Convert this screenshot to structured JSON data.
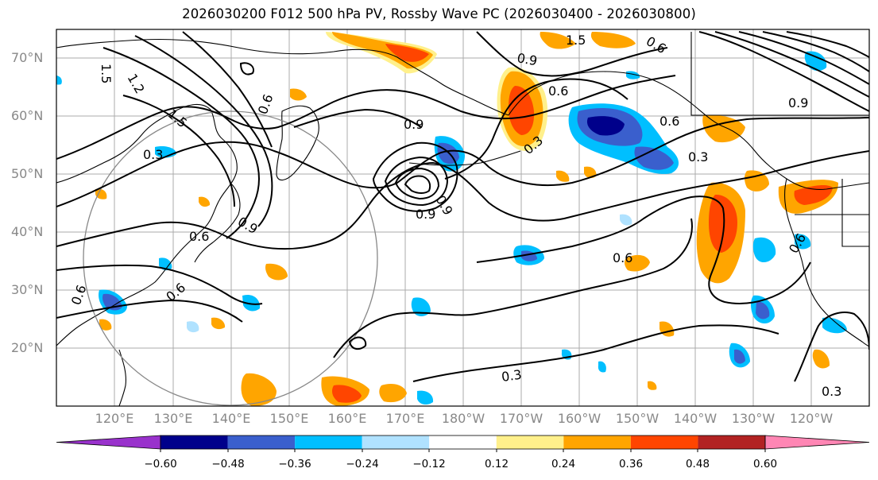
{
  "title": "2026030200 F012 500 hPa PV, Rossby Wave PC (2026030400 - 2026030800)",
  "map": {
    "lat_labels": [
      "70°N",
      "60°N",
      "50°N",
      "40°N",
      "30°N",
      "20°N"
    ],
    "lon_labels": [
      "120°E",
      "130°E",
      "140°E",
      "150°E",
      "160°E",
      "170°E",
      "180°W",
      "170°W",
      "160°W",
      "150°W",
      "140°W",
      "130°W",
      "120°W"
    ],
    "contour_labels": [
      "1.5",
      "1.5",
      "1.2",
      "1.5",
      "0.9",
      "0.9",
      "0.6",
      "0.6",
      "0.3",
      "0.9",
      "0.6",
      "0.3",
      "0.9",
      "0.9",
      "0.3",
      "0.9",
      "0.6",
      "0.6",
      "0.6",
      "0.3",
      "0.3",
      "0.6",
      "0.6",
      "0.6"
    ],
    "colors": {
      "contour": "#000000",
      "grid": "#888888",
      "coast": "#000000"
    }
  },
  "colorbar": {
    "tick_labels": [
      "−0.60",
      "−0.48",
      "−0.36",
      "−0.24",
      "−0.12",
      "0.12",
      "0.24",
      "0.36",
      "0.48",
      "0.60"
    ],
    "colors": [
      "#9932cc",
      "#00008b",
      "#3a5fcd",
      "#00bfff",
      "#b0e2ff",
      "#ffffff",
      "#fff08b",
      "#ffa500",
      "#ff4500",
      "#b22222",
      "#ff86b4"
    ]
  }
}
